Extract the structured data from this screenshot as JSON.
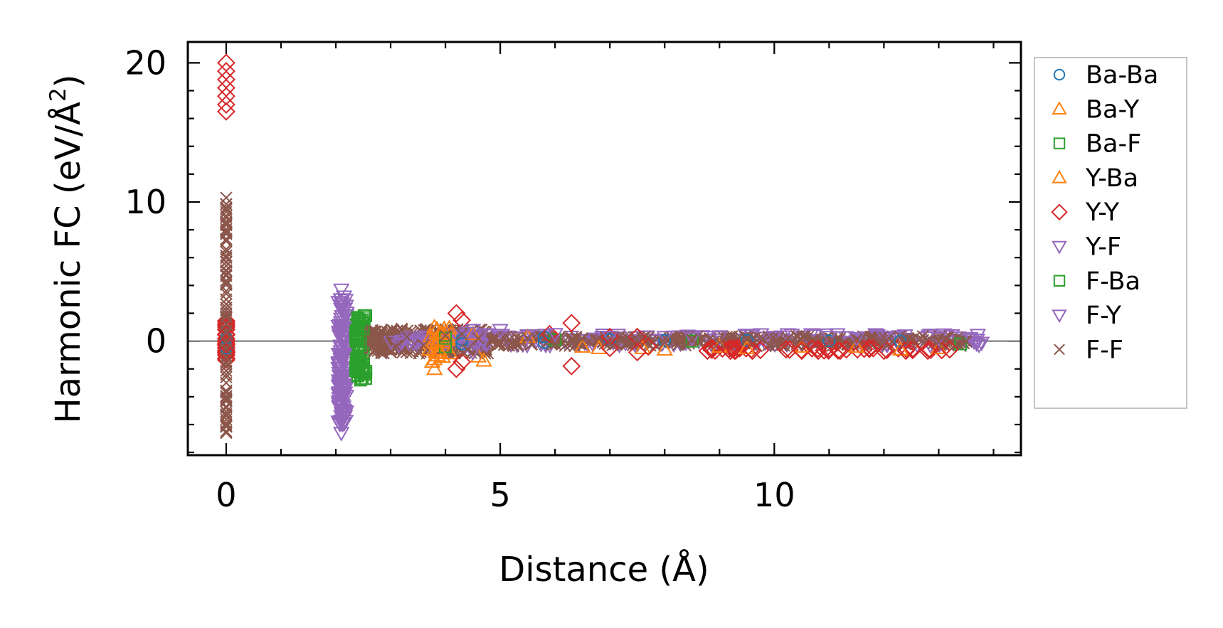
{
  "chart_data": {
    "type": "scatter",
    "title": "",
    "xlabel": "Distance (Å)",
    "ylabel": "Harmonic FC (eV/Å",
    "ylabel_superscript": "2",
    "ylabel_suffix": ")",
    "xlim": [
      -0.7,
      14.5
    ],
    "ylim": [
      -8.2,
      21.5
    ],
    "xticks": [
      0,
      5,
      10
    ],
    "yticks": [
      0,
      10,
      20
    ],
    "xticks_minor_step": 1,
    "yticks_minor_step": 2,
    "grid": false,
    "zero_line": true,
    "legend_position": "outside-right",
    "series": [
      {
        "name": "Ba-Ba",
        "marker": "circle",
        "color": "#1f77b4",
        "points": [
          [
            0.0,
            0.2
          ],
          [
            0.0,
            -0.5
          ],
          [
            4.3,
            0.1
          ],
          [
            4.3,
            -0.2
          ],
          [
            5.8,
            0.3
          ],
          [
            5.8,
            -0.1
          ],
          [
            7.0,
            0.1
          ],
          [
            8.0,
            0.05
          ],
          [
            9.5,
            0.05
          ],
          [
            11.0,
            0.02
          ],
          [
            12.3,
            0.0
          ]
        ]
      },
      {
        "name": "Ba-Y",
        "marker": "triangle-up",
        "color": "#ff7f0e",
        "points": [
          [
            3.8,
            1.0
          ],
          [
            3.8,
            -1.3
          ],
          [
            3.8,
            -2.0
          ],
          [
            4.5,
            0.5
          ],
          [
            4.7,
            -1.4
          ],
          [
            5.5,
            0.3
          ],
          [
            6.5,
            -0.4
          ],
          [
            7.6,
            -0.5
          ],
          [
            8.0,
            -0.6
          ],
          [
            9.5,
            -0.5
          ],
          [
            10.5,
            -0.4
          ],
          [
            12.3,
            -0.6
          ],
          [
            13.0,
            -0.5
          ]
        ]
      },
      {
        "name": "Ba-F",
        "marker": "square",
        "color": "#2ca02c",
        "points": [
          [
            2.4,
            1.7
          ],
          [
            2.4,
            1.2
          ],
          [
            2.4,
            0.6
          ],
          [
            2.4,
            0.0
          ],
          [
            2.4,
            -0.6
          ],
          [
            2.4,
            -1.2
          ],
          [
            2.4,
            -1.8
          ],
          [
            2.4,
            -2.5
          ],
          [
            2.5,
            0.9
          ],
          [
            2.5,
            -0.9
          ],
          [
            4.0,
            0.2
          ],
          [
            4.0,
            -0.4
          ],
          [
            6.0,
            0.1
          ],
          [
            8.5,
            0.0
          ],
          [
            13.4,
            -0.2
          ]
        ]
      },
      {
        "name": "Y-Ba",
        "marker": "triangle-up",
        "color": "#ff7f0e",
        "points": [
          [
            3.9,
            0.6
          ],
          [
            3.9,
            -0.8
          ],
          [
            4.6,
            -1.1
          ],
          [
            6.8,
            -0.5
          ],
          [
            9.0,
            -0.4
          ],
          [
            11.5,
            -0.4
          ]
        ]
      },
      {
        "name": "Y-Y",
        "marker": "diamond",
        "color": "#d62728",
        "points": [
          [
            0.0,
            20.0
          ],
          [
            0.0,
            19.4
          ],
          [
            0.0,
            18.8
          ],
          [
            0.0,
            18.2
          ],
          [
            0.0,
            17.6
          ],
          [
            0.0,
            17.0
          ],
          [
            0.0,
            16.5
          ],
          [
            0.0,
            1.0
          ],
          [
            0.0,
            0.5
          ],
          [
            0.0,
            -0.2
          ],
          [
            0.0,
            -0.8
          ],
          [
            4.2,
            2.0
          ],
          [
            4.3,
            1.5
          ],
          [
            4.2,
            -2.0
          ],
          [
            4.3,
            -1.5
          ],
          [
            5.9,
            0.5
          ],
          [
            6.3,
            1.3
          ],
          [
            6.3,
            -1.8
          ],
          [
            7.0,
            0.3
          ],
          [
            7.0,
            -0.5
          ],
          [
            7.5,
            0.3
          ],
          [
            7.5,
            -0.8
          ],
          [
            7.7,
            -0.4
          ],
          [
            9.2,
            -0.7
          ],
          [
            9.6,
            -0.7
          ],
          [
            10.5,
            -0.7
          ],
          [
            10.8,
            -0.7
          ],
          [
            11.2,
            -0.7
          ],
          [
            12.0,
            -0.7
          ],
          [
            12.4,
            -0.7
          ],
          [
            12.8,
            -0.7
          ],
          [
            13.2,
            -0.6
          ]
        ]
      },
      {
        "name": "Y-F",
        "marker": "triangle-down",
        "color": "#9467bd",
        "points": [
          [
            2.1,
            3.7
          ],
          [
            2.1,
            3.0
          ],
          [
            2.1,
            2.3
          ],
          [
            2.1,
            1.6
          ],
          [
            2.1,
            0.9
          ],
          [
            2.1,
            0.2
          ],
          [
            2.1,
            -0.5
          ],
          [
            2.1,
            -1.2
          ],
          [
            2.1,
            -1.9
          ],
          [
            2.1,
            -2.6
          ],
          [
            2.1,
            -3.3
          ],
          [
            2.1,
            -4.0
          ],
          [
            2.1,
            -4.7
          ],
          [
            2.1,
            -5.4
          ],
          [
            2.1,
            -6.6
          ],
          [
            4.5,
            0.8
          ],
          [
            4.5,
            -0.8
          ],
          [
            5.0,
            0.8
          ],
          [
            6.0,
            0.5
          ],
          [
            7.0,
            0.3
          ],
          [
            8.0,
            0.3
          ],
          [
            9.0,
            0.3
          ],
          [
            10.0,
            0.3
          ],
          [
            11.0,
            0.3
          ],
          [
            12.0,
            0.3
          ],
          [
            13.0,
            0.2
          ],
          [
            13.7,
            0.1
          ]
        ]
      },
      {
        "name": "F-Ba",
        "marker": "square",
        "color": "#2ca02c",
        "points": [
          [
            2.45,
            1.5
          ],
          [
            2.45,
            0.3
          ],
          [
            2.45,
            -0.3
          ],
          [
            2.45,
            -1.5
          ],
          [
            2.45,
            -2.8
          ]
        ]
      },
      {
        "name": "F-Y",
        "marker": "triangle-down",
        "color": "#9467bd",
        "points": [
          [
            2.15,
            3.2
          ],
          [
            2.15,
            1.0
          ],
          [
            2.15,
            -1.0
          ],
          [
            2.15,
            -3.5
          ],
          [
            2.15,
            -5.0
          ],
          [
            4.4,
            0.6
          ],
          [
            5.5,
            0.4
          ],
          [
            8.5,
            0.2
          ],
          [
            11.5,
            0.2
          ],
          [
            13.6,
            0.1
          ]
        ]
      },
      {
        "name": "F-F",
        "marker": "x",
        "color": "#8c564b",
        "points": [
          [
            0.0,
            10.3
          ],
          [
            0.0,
            9.6
          ],
          [
            0.0,
            9.0
          ],
          [
            0.0,
            8.4
          ],
          [
            0.0,
            7.8
          ],
          [
            0.0,
            7.2
          ],
          [
            0.0,
            6.6
          ],
          [
            0.0,
            6.0
          ],
          [
            0.0,
            5.4
          ],
          [
            0.0,
            4.8
          ],
          [
            0.0,
            4.2
          ],
          [
            0.0,
            3.6
          ],
          [
            0.0,
            3.0
          ],
          [
            0.0,
            2.4
          ],
          [
            0.0,
            1.8
          ],
          [
            0.0,
            1.2
          ],
          [
            0.0,
            0.6
          ],
          [
            0.0,
            0.0
          ],
          [
            0.0,
            -0.6
          ],
          [
            0.0,
            -1.2
          ],
          [
            0.0,
            -1.8
          ],
          [
            0.0,
            -2.4
          ],
          [
            0.0,
            -3.0
          ],
          [
            0.0,
            -3.6
          ],
          [
            0.0,
            -4.2
          ],
          [
            0.0,
            -4.8
          ],
          [
            0.0,
            -5.4
          ],
          [
            0.0,
            -6.0
          ],
          [
            0.0,
            -6.6
          ],
          [
            2.7,
            0.7
          ],
          [
            2.7,
            -0.7
          ],
          [
            2.9,
            0.5
          ],
          [
            3.1,
            -0.4
          ],
          [
            3.3,
            0.3
          ],
          [
            3.6,
            -0.3
          ],
          [
            4.0,
            0.4
          ],
          [
            4.3,
            0.5
          ],
          [
            4.4,
            -0.6
          ],
          [
            4.6,
            0.2
          ],
          [
            5.0,
            -0.2
          ],
          [
            5.5,
            0.2
          ],
          [
            6.0,
            -0.2
          ],
          [
            6.5,
            0.15
          ],
          [
            7.0,
            -0.15
          ],
          [
            7.5,
            0.1
          ],
          [
            8.0,
            -0.1
          ],
          [
            8.5,
            0.1
          ],
          [
            9.0,
            -0.1
          ],
          [
            9.5,
            0.1
          ],
          [
            10.0,
            -0.1
          ],
          [
            10.5,
            0.1
          ],
          [
            11.0,
            -0.1
          ],
          [
            11.5,
            0.1
          ],
          [
            12.0,
            -0.1
          ],
          [
            12.5,
            0.1
          ],
          [
            13.0,
            -0.05
          ],
          [
            13.5,
            -0.02
          ]
        ]
      }
    ],
    "dense_bands": [
      {
        "series_index": 4,
        "x": [
          0.0,
          0.0
        ],
        "y": [
          -1.5,
          1.5
        ],
        "count": 30
      },
      {
        "series_index": 8,
        "x": [
          0.0,
          0.0
        ],
        "y": [
          -6.5,
          10.0
        ],
        "count": 80
      },
      {
        "series_index": 5,
        "x": [
          2.05,
          2.2
        ],
        "y": [
          -6.0,
          3.0
        ],
        "count": 140
      },
      {
        "series_index": 2,
        "x": [
          2.35,
          2.55
        ],
        "y": [
          -2.7,
          1.9
        ],
        "count": 70
      },
      {
        "series_index": 8,
        "x": [
          2.6,
          4.8
        ],
        "y": [
          -0.9,
          0.9
        ],
        "count": 260
      },
      {
        "series_index": 5,
        "x": [
          3.0,
          13.8
        ],
        "y": [
          -0.3,
          0.5
        ],
        "count": 260
      },
      {
        "series_index": 8,
        "x": [
          4.8,
          13.5
        ],
        "y": [
          -0.35,
          0.35
        ],
        "count": 300
      },
      {
        "series_index": 4,
        "x": [
          8.5,
          13.3
        ],
        "y": [
          -0.7,
          -0.5
        ],
        "count": 40
      },
      {
        "series_index": 1,
        "x": [
          3.7,
          4.1
        ],
        "y": [
          -1.5,
          1.0
        ],
        "count": 25
      }
    ]
  }
}
